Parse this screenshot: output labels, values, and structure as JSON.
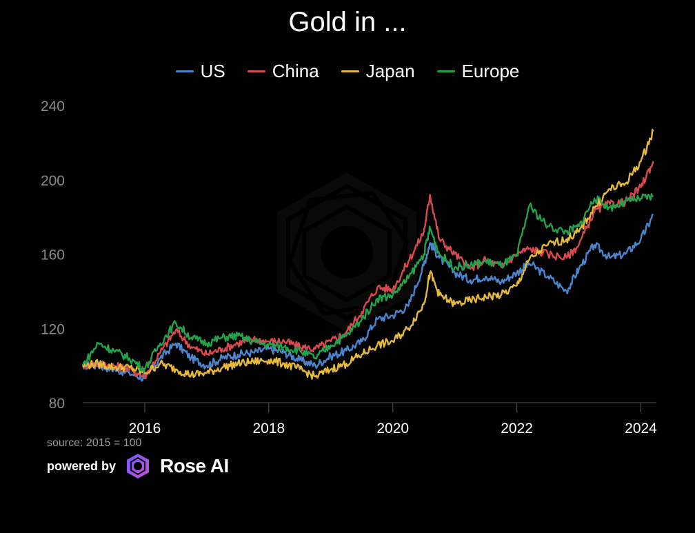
{
  "chart_data": {
    "type": "line",
    "title": "Gold in ...",
    "xlabel": "",
    "ylabel": "",
    "x_ticks": [
      "2016",
      "2018",
      "2020",
      "2022",
      "2024"
    ],
    "y_ticks": [
      "80",
      "120",
      "160",
      "200",
      "240"
    ],
    "xlim": [
      2015.0,
      2024.25
    ],
    "ylim": [
      80,
      240
    ],
    "grid": false,
    "legend_placement": "top",
    "x": [
      2015.0,
      2015.25,
      2015.5,
      2015.75,
      2016.0,
      2016.25,
      2016.5,
      2016.75,
      2017.0,
      2017.25,
      2017.5,
      2017.75,
      2018.0,
      2018.25,
      2018.5,
      2018.75,
      2019.0,
      2019.25,
      2019.5,
      2019.75,
      2020.0,
      2020.25,
      2020.5,
      2020.6,
      2020.75,
      2021.0,
      2021.25,
      2021.5,
      2021.75,
      2022.0,
      2022.2,
      2022.5,
      2022.8,
      2023.0,
      2023.25,
      2023.5,
      2023.75,
      2024.0,
      2024.2
    ],
    "series": [
      {
        "name": "US",
        "color": "#4a86cf",
        "values": [
          100,
          100,
          98,
          96,
          93,
          104,
          112,
          104,
          100,
          104,
          106,
          107,
          109,
          107,
          103,
          100,
          105,
          108,
          113,
          125,
          127,
          132,
          154,
          166,
          158,
          150,
          146,
          148,
          145,
          150,
          155,
          148,
          140,
          152,
          165,
          158,
          160,
          168,
          181
        ]
      },
      {
        "name": "China",
        "color": "#d94a4f",
        "values": [
          100,
          101,
          100,
          98,
          94,
          107,
          119,
          110,
          106,
          109,
          112,
          114,
          113,
          113,
          110,
          109,
          113,
          118,
          129,
          142,
          141,
          156,
          172,
          192,
          168,
          160,
          152,
          157,
          153,
          160,
          163,
          160,
          158,
          165,
          183,
          187,
          188,
          196,
          210
        ]
      },
      {
        "name": "Japan",
        "color": "#e6b93a",
        "values": [
          100,
          101,
          99,
          99,
          96,
          101,
          98,
          95,
          96,
          99,
          101,
          102,
          103,
          101,
          98,
          94,
          98,
          101,
          106,
          111,
          113,
          120,
          133,
          150,
          138,
          133,
          135,
          137,
          138,
          143,
          157,
          165,
          168,
          172,
          185,
          195,
          198,
          210,
          226
        ]
      },
      {
        "name": "Europe",
        "color": "#22a34b",
        "values": [
          100,
          112,
          108,
          104,
          98,
          112,
          123,
          115,
          112,
          115,
          116,
          113,
          111,
          110,
          108,
          104,
          111,
          116,
          125,
          136,
          138,
          147,
          160,
          174,
          160,
          153,
          154,
          156,
          154,
          159,
          186,
          175,
          172,
          175,
          190,
          185,
          188,
          190,
          191
        ]
      }
    ]
  },
  "source_text": "source: 2015 = 100",
  "powered_label": "powered by",
  "brand": "Rose AI",
  "colors": {
    "background": "#000000",
    "axis": "#555555",
    "tick_text": "#8a8a8a"
  }
}
